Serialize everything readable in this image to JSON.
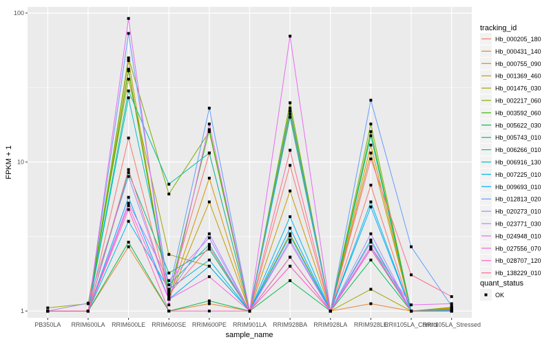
{
  "chart_data": {
    "type": "line",
    "title": "",
    "xlabel": "sample_name",
    "ylabel": "FPKM + 1",
    "yscale": "log10",
    "ylim": [
      0.9,
      110
    ],
    "y_ticks": [
      1,
      10,
      100
    ],
    "y_tick_labels": [
      "1",
      "10",
      "100"
    ],
    "grid": true,
    "categories": [
      "PB350LA",
      "RRIM600LA",
      "RRIM600LE",
      "RRIM600SE",
      "RRIM600PE",
      "RRIM901LA",
      "RRIM928BA",
      "RRIM928LA",
      "RRIM928LE",
      "RRII105LA_Control",
      "RRII105LA_Stressed"
    ],
    "legend": {
      "position": "right",
      "color_title": "tracking_id",
      "shape_title": "quant_status",
      "shape_entries": [
        "OK"
      ]
    },
    "series": [
      {
        "name": "Hb_000205_180",
        "color": "#F8766D",
        "values": [
          1.0,
          1.0,
          14.5,
          1.3,
          11.5,
          1.0,
          9.5,
          1.0,
          7.0,
          1.0,
          1.0
        ]
      },
      {
        "name": "Hb_000431_140",
        "color": "#EA8331",
        "values": [
          1.0,
          1.0,
          2.7,
          1.0,
          1.12,
          1.0,
          2.0,
          1.0,
          1.12,
          1.0,
          1.0
        ]
      },
      {
        "name": "Hb_000755_090",
        "color": "#D89000",
        "values": [
          1.0,
          1.0,
          42.0,
          1.2,
          7.8,
          1.0,
          21.0,
          1.0,
          13.0,
          1.0,
          1.05
        ]
      },
      {
        "name": "Hb_001369_460",
        "color": "#C09B00",
        "values": [
          1.0,
          1.0,
          48.0,
          1.2,
          5.4,
          1.0,
          6.4,
          1.0,
          11.5,
          1.0,
          1.04
        ]
      },
      {
        "name": "Hb_001476_030",
        "color": "#A3A500",
        "values": [
          1.05,
          1.12,
          36.0,
          2.4,
          2.0,
          1.0,
          3.3,
          1.0,
          1.4,
          1.0,
          1.03
        ]
      },
      {
        "name": "Hb_002217_060",
        "color": "#7CAE00",
        "values": [
          1.0,
          1.0,
          50.0,
          6.1,
          16.0,
          1.0,
          25.0,
          1.0,
          18.0,
          1.0,
          1.06
        ]
      },
      {
        "name": "Hb_003592_060",
        "color": "#39B600",
        "values": [
          1.0,
          1.0,
          41.0,
          1.25,
          16.5,
          1.0,
          23.0,
          1.0,
          16.0,
          1.0,
          1.02
        ]
      },
      {
        "name": "Hb_005622_030",
        "color": "#00BB4E",
        "values": [
          1.0,
          1.0,
          2.9,
          1.0,
          1.17,
          1.0,
          1.6,
          1.0,
          2.2,
          1.0,
          1.0
        ]
      },
      {
        "name": "Hb_005743_010",
        "color": "#00BF7D",
        "values": [
          1.0,
          1.0,
          8.5,
          1.8,
          2.6,
          1.0,
          2.3,
          1.0,
          2.7,
          1.0,
          1.01
        ]
      },
      {
        "name": "Hb_006266_010",
        "color": "#00C1A3",
        "values": [
          1.0,
          1.0,
          30.0,
          7.1,
          11.5,
          1.0,
          20.0,
          1.0,
          15.0,
          1.0,
          1.02
        ]
      },
      {
        "name": "Hb_006916_130",
        "color": "#00BFC4",
        "values": [
          1.0,
          1.0,
          27.0,
          1.5,
          2.8,
          1.0,
          3.2,
          1.0,
          3.0,
          1.0,
          1.01
        ]
      },
      {
        "name": "Hb_007225_010",
        "color": "#00B8E7",
        "values": [
          1.0,
          1.0,
          4.0,
          1.4,
          2.2,
          1.0,
          4.3,
          1.0,
          5.4,
          1.0,
          1.0
        ]
      },
      {
        "name": "Hb_009693_010",
        "color": "#00A9FF",
        "values": [
          1.0,
          1.0,
          5.8,
          1.2,
          2.0,
          1.0,
          3.6,
          1.0,
          5.0,
          1.0,
          1.0
        ]
      },
      {
        "name": "Hb_012813_020",
        "color": "#619CFF",
        "values": [
          1.0,
          1.0,
          73.0,
          1.35,
          23.0,
          1.0,
          22.0,
          1.0,
          26.0,
          2.7,
          1.08
        ]
      },
      {
        "name": "Hb_020273_010",
        "color": "#9F8CFF",
        "values": [
          1.0,
          1.13,
          8.0,
          1.3,
          3.3,
          1.0,
          3.0,
          1.0,
          3.3,
          1.0,
          1.0
        ]
      },
      {
        "name": "Hb_023771_030",
        "color": "#C77CFF",
        "values": [
          1.0,
          1.0,
          5.3,
          1.6,
          3.1,
          1.0,
          2.9,
          1.0,
          2.9,
          1.0,
          1.0
        ]
      },
      {
        "name": "Hb_024948_010",
        "color": "#E76BF3",
        "values": [
          1.0,
          1.0,
          92.0,
          1.1,
          18.0,
          1.0,
          70.0,
          1.0,
          2.7,
          1.1,
          1.12
        ]
      },
      {
        "name": "Hb_027556_070",
        "color": "#FA62DB",
        "values": [
          1.0,
          1.0,
          5.1,
          1.2,
          1.7,
          1.0,
          2.0,
          1.0,
          2.6,
          1.0,
          1.0
        ]
      },
      {
        "name": "Hb_028707_120",
        "color": "#FF62BC",
        "values": [
          1.0,
          1.0,
          4.8,
          1.0,
          1.0,
          1.0,
          2.3,
          1.0,
          2.6,
          1.0,
          1.0
        ]
      },
      {
        "name": "Hb_138229_010",
        "color": "#FF6C91",
        "values": [
          1.0,
          1.0,
          8.9,
          1.3,
          2.7,
          1.0,
          12.0,
          1.0,
          10.5,
          1.75,
          1.25
        ]
      }
    ]
  }
}
